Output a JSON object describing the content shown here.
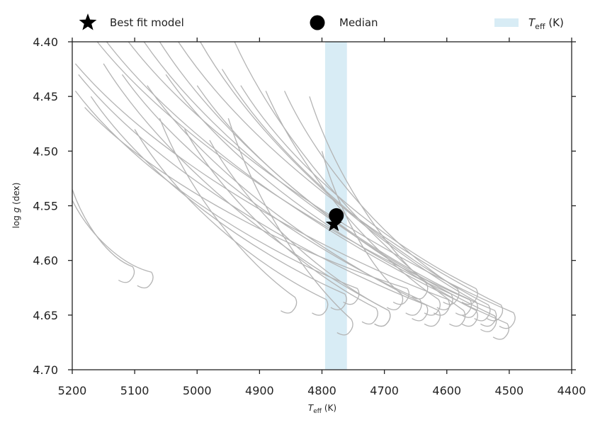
{
  "chart_data": {
    "type": "line",
    "xlabel": {
      "main": "T",
      "sub": "eff",
      "unit": "(K)"
    },
    "ylabel": {
      "prefix": "log",
      "var": "g",
      "unit": "(dex)"
    },
    "xlim": [
      5200,
      4400
    ],
    "ylim": [
      4.4,
      4.7
    ],
    "x_ticks": [
      "5200",
      "5100",
      "5000",
      "4900",
      "4800",
      "4700",
      "4600",
      "4500",
      "4400"
    ],
    "y_ticks": [
      "4.40",
      "4.45",
      "4.50",
      "4.55",
      "4.60",
      "4.65",
      "4.70"
    ],
    "legend": {
      "position": "top",
      "best_fit_label": "Best fit model",
      "median_label": "Median",
      "teff_label": {
        "main": "T",
        "sub": "eff",
        "unit": "(K)"
      }
    },
    "colors": {
      "tracks": "#b4b4b4",
      "band": "#d8ecf5",
      "markers": "#000000",
      "axes": "#222222"
    },
    "teff_band": [
      4795,
      4760
    ],
    "best_fit_point": {
      "x": 4781,
      "y": 4.567
    },
    "median_point": {
      "x": 4777,
      "y": 4.559
    },
    "tracks": [
      {
        "top_x": 5160,
        "top_y": 4.4,
        "bottom_x": 4530,
        "bottom_y": 4.66
      },
      {
        "top_x": 5145,
        "top_y": 4.4,
        "bottom_x": 4510,
        "bottom_y": 4.672
      },
      {
        "top_x": 5110,
        "top_y": 4.4,
        "bottom_x": 4500,
        "bottom_y": 4.662
      },
      {
        "top_x": 5085,
        "top_y": 4.4,
        "bottom_x": 4530,
        "bottom_y": 4.665
      },
      {
        "top_x": 5060,
        "top_y": 4.4,
        "bottom_x": 4560,
        "bottom_y": 4.66
      },
      {
        "top_x": 5030,
        "top_y": 4.4,
        "bottom_x": 4520,
        "bottom_y": 4.655
      },
      {
        "top_x": 4995,
        "top_y": 4.4,
        "bottom_x": 4560,
        "bottom_y": 4.652
      },
      {
        "top_x": 4940,
        "top_y": 4.4,
        "bottom_x": 4580,
        "bottom_y": 4.66
      },
      {
        "top_x": 5195,
        "top_y": 4.42,
        "bottom_x": 4605,
        "bottom_y": 4.65
      },
      {
        "top_x": 5190,
        "top_y": 4.43,
        "bottom_x": 4640,
        "bottom_y": 4.655
      },
      {
        "top_x": 5180,
        "top_y": 4.46,
        "bottom_x": 4670,
        "bottom_y": 4.64
      },
      {
        "top_x": 5150,
        "top_y": 4.42,
        "bottom_x": 4700,
        "bottom_y": 4.66
      },
      {
        "top_x": 5120,
        "top_y": 4.43,
        "bottom_x": 4650,
        "bottom_y": 4.65
      },
      {
        "top_x": 5080,
        "top_y": 4.44,
        "bottom_x": 4620,
        "bottom_y": 4.66
      },
      {
        "top_x": 5050,
        "top_y": 4.43,
        "bottom_x": 4600,
        "bottom_y": 4.645
      },
      {
        "top_x": 5000,
        "top_y": 4.44,
        "bottom_x": 4570,
        "bottom_y": 4.65
      },
      {
        "top_x": 4960,
        "top_y": 4.425,
        "bottom_x": 4540,
        "bottom_y": 4.655
      },
      {
        "top_x": 4930,
        "top_y": 4.44,
        "bottom_x": 4560,
        "bottom_y": 4.64
      },
      {
        "top_x": 4890,
        "top_y": 4.445,
        "bottom_x": 4620,
        "bottom_y": 4.65
      },
      {
        "top_x": 4860,
        "top_y": 4.445,
        "bottom_x": 4590,
        "bottom_y": 4.64
      },
      {
        "top_x": 4820,
        "top_y": 4.45,
        "bottom_x": 4640,
        "bottom_y": 4.635
      },
      {
        "top_x": 4800,
        "top_y": 4.5,
        "bottom_x": 4680,
        "bottom_y": 4.645
      },
      {
        "top_x": 5195,
        "top_y": 4.445,
        "bottom_x": 4750,
        "bottom_y": 4.64
      },
      {
        "top_x": 5170,
        "top_y": 4.45,
        "bottom_x": 4770,
        "bottom_y": 4.645
      },
      {
        "top_x": 5100,
        "top_y": 4.48,
        "bottom_x": 4800,
        "bottom_y": 4.65
      },
      {
        "top_x": 5060,
        "top_y": 4.47,
        "bottom_x": 4850,
        "bottom_y": 4.648
      },
      {
        "top_x": 5020,
        "top_y": 4.48,
        "bottom_x": 4720,
        "bottom_y": 4.658
      },
      {
        "top_x": 4980,
        "top_y": 4.49,
        "bottom_x": 4700,
        "bottom_y": 4.66
      },
      {
        "top_x": 4950,
        "top_y": 4.47,
        "bottom_x": 4760,
        "bottom_y": 4.668
      },
      {
        "top_x": 5200,
        "top_y": 4.535,
        "bottom_x": 5110,
        "bottom_y": 4.62
      },
      {
        "top_x": 5200,
        "top_y": 4.545,
        "bottom_x": 5080,
        "bottom_y": 4.625
      }
    ]
  }
}
